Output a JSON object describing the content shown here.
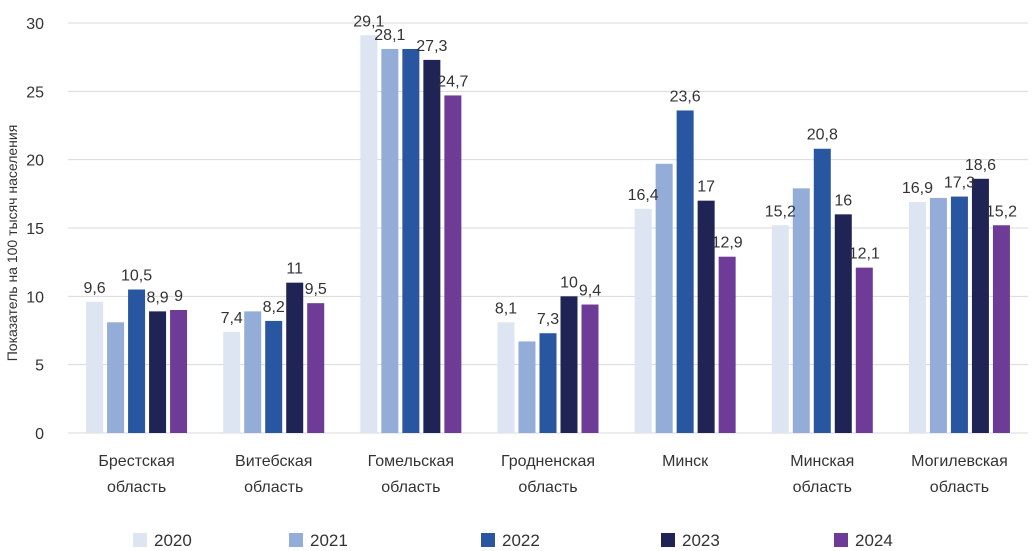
{
  "chart_data": {
    "type": "bar",
    "ylabel": "Показатель на 100 тысяч населения",
    "ylim": [
      0,
      30
    ],
    "yticks": [
      0,
      5,
      10,
      15,
      20,
      25,
      30
    ],
    "grid": true,
    "legend_position": "bottom",
    "categories": [
      [
        "Брестская",
        "область"
      ],
      [
        "Витебская",
        "область"
      ],
      [
        "Гомельская",
        "область"
      ],
      [
        "Гродненская",
        "область"
      ],
      [
        "Минск"
      ],
      [
        "Минская",
        "область"
      ],
      [
        "Могилевская",
        "область"
      ]
    ],
    "series": [
      {
        "name": "2020",
        "color": "#dde5f2",
        "values": [
          9.6,
          7.4,
          29.1,
          8.1,
          16.4,
          15.2,
          16.9
        ],
        "labels": [
          "9,6",
          "7,4",
          "29,1",
          "8,1",
          "16,4",
          "15,2",
          "16,9"
        ]
      },
      {
        "name": "2021",
        "color": "#94acd8",
        "values": [
          8.1,
          8.9,
          28.1,
          6.7,
          19.7,
          17.9,
          17.2
        ],
        "labels": [
          "",
          "",
          "28,1",
          "",
          "",
          "",
          ""
        ]
      },
      {
        "name": "2022",
        "color": "#2956a0",
        "values": [
          10.5,
          8.2,
          28.1,
          7.3,
          23.6,
          20.8,
          17.3
        ],
        "labels": [
          "10,5",
          "8,2",
          "",
          "7,3",
          "23,6",
          "20,8",
          "17,3"
        ]
      },
      {
        "name": "2023",
        "color": "#1f2454",
        "values": [
          8.9,
          11,
          27.3,
          10,
          17,
          16,
          18.6
        ],
        "labels": [
          "8,9",
          "11",
          "27,3",
          "10",
          "17",
          "16",
          "18,6"
        ]
      },
      {
        "name": "2024",
        "color": "#6e3b96",
        "values": [
          9,
          9.5,
          24.7,
          9.4,
          12.9,
          12.1,
          15.2
        ],
        "labels": [
          "9",
          "9,5",
          "24,7",
          "9,4",
          "12,9",
          "12,1",
          "15,2"
        ]
      }
    ]
  }
}
